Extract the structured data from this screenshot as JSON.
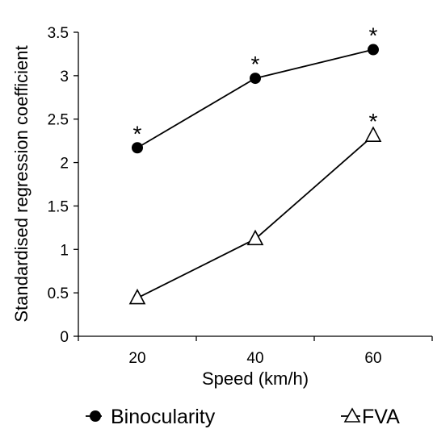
{
  "chart_data": {
    "type": "line",
    "title": "",
    "xlabel": "Speed (km/h)",
    "ylabel": "Standardised regression coefficient",
    "categories": [
      "20",
      "40",
      "60"
    ],
    "x": [
      20,
      40,
      60
    ],
    "xlim": [
      10,
      70
    ],
    "ylim": [
      0,
      3.5
    ],
    "y_ticks": [
      "0",
      "0.5",
      "1",
      "1.5",
      "2",
      "2.5",
      "3",
      "3.5"
    ],
    "grid": false,
    "legend_position": "bottom",
    "series": [
      {
        "name": "Binocularity",
        "marker": "filled-circle",
        "color": "#000000",
        "values": [
          2.17,
          2.97,
          3.3
        ],
        "annotations": [
          "*",
          "*",
          "*"
        ]
      },
      {
        "name": "FVA",
        "marker": "open-triangle",
        "color": "#000000",
        "values": [
          0.44,
          1.12,
          2.31
        ],
        "annotations": [
          "",
          "",
          "*"
        ]
      }
    ]
  }
}
